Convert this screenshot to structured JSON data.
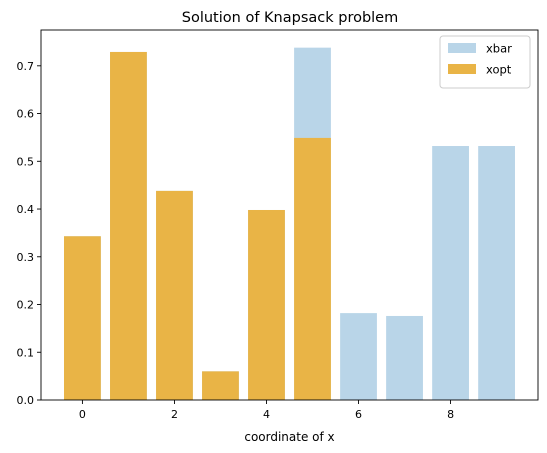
{
  "chart_data": {
    "type": "bar",
    "title": "Solution of Knapsack problem",
    "xlabel": "coordinate of x",
    "ylabel": "",
    "xlim": [
      -0.9,
      9.9
    ],
    "ylim": [
      0,
      0.775
    ],
    "xticks": [
      0,
      2,
      4,
      6,
      8
    ],
    "yticks": [
      0.0,
      0.1,
      0.2,
      0.3,
      0.4,
      0.5,
      0.6,
      0.7
    ],
    "ytick_labels": [
      "0.0",
      "0.1",
      "0.2",
      "0.3",
      "0.4",
      "0.5",
      "0.6",
      "0.7"
    ],
    "legend_position": "upper right",
    "grid": false,
    "series": [
      {
        "name": "xbar",
        "color": "#b9d5e8",
        "x": [
          0,
          1,
          2,
          3,
          4,
          5,
          6,
          7,
          8,
          9
        ],
        "values": [
          0.343,
          0.729,
          0.438,
          0.06,
          0.398,
          0.738,
          0.182,
          0.176,
          0.532,
          0.532
        ]
      },
      {
        "name": "xopt",
        "color": "#e9b446",
        "x": [
          0,
          1,
          2,
          3,
          4,
          5
        ],
        "values": [
          0.343,
          0.729,
          0.438,
          0.06,
          0.398,
          0.549
        ]
      }
    ]
  }
}
